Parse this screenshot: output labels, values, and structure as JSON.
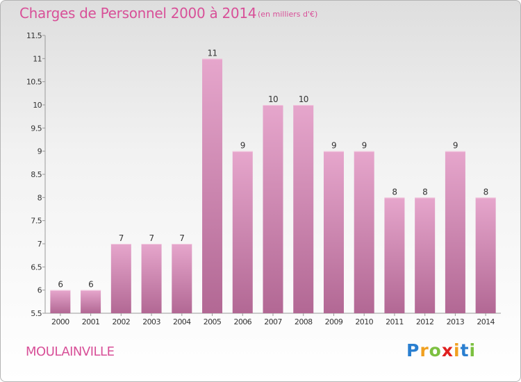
{
  "header": {
    "title": "Charges de Personnel 2000 à 2014",
    "subtitle": "(en milliers d'€)"
  },
  "commune": "MOULAINVILLE",
  "logo": {
    "letters": [
      "P",
      "r",
      "o",
      "x",
      "i",
      "t",
      "i"
    ],
    "colors": [
      "#2a7fd0",
      "#f0a020",
      "#7cc040",
      "#e02020",
      "#f0a020",
      "#2a7fd0",
      "#7cc040"
    ]
  },
  "colors": {
    "bar_top": "#e6a6cc",
    "bar_bottom": "#b26894",
    "accent": "#d85098"
  },
  "chart_data": {
    "type": "bar",
    "title": "Charges de Personnel 2000 à 2014",
    "categories": [
      "2000",
      "2001",
      "2002",
      "2003",
      "2004",
      "2005",
      "2006",
      "2007",
      "2008",
      "2009",
      "2010",
      "2011",
      "2012",
      "2013",
      "2014"
    ],
    "values": [
      6,
      6,
      7,
      7,
      7,
      11,
      9,
      10,
      10,
      9,
      9,
      8,
      8,
      9,
      8
    ],
    "data_labels": [
      "6",
      "6",
      "7",
      "7",
      "7",
      "11",
      "9",
      "10",
      "10",
      "9",
      "9",
      "8",
      "8",
      "9",
      "8"
    ],
    "ylim": [
      5.5,
      11.5
    ],
    "yticks": [
      "5.5",
      "6",
      "6.5",
      "7",
      "7.5",
      "8",
      "8.5",
      "9",
      "9.5",
      "10",
      "10.5",
      "11",
      "11.5"
    ],
    "ytick_values": [
      5.5,
      6,
      6.5,
      7,
      7.5,
      8,
      8.5,
      9,
      9.5,
      10,
      10.5,
      11,
      11.5
    ],
    "grid": false,
    "legend": "none"
  }
}
